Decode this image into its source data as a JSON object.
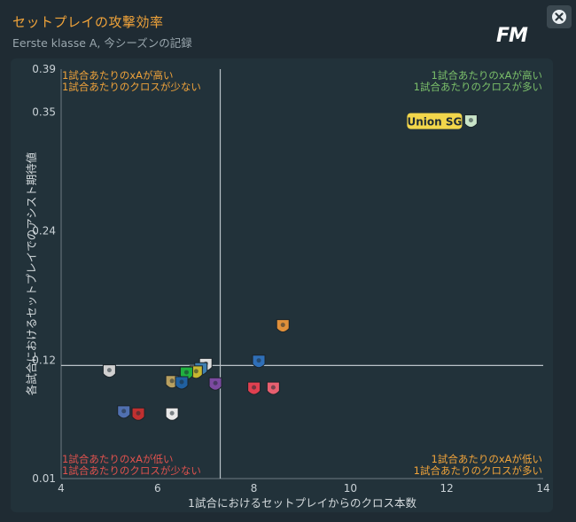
{
  "header": {
    "title": "セットプレイの攻撃効率",
    "subtitle": "Eerste klasse A, 今シーズンの記録",
    "logo": "FM"
  },
  "colors": {
    "title": "#f0a33a",
    "quad_top_left": "#f0a33a",
    "quad_top_right": "#7bbf6a",
    "quad_bottom_left": "#e0524e",
    "quad_bottom_right": "#f0a33a",
    "highlight_label_bg": "#f2d64b"
  },
  "icons": {
    "close": "close-icon",
    "logo": "fm-logo"
  },
  "chart_data": {
    "type": "scatter",
    "xlabel": "1試合におけるセットプレイからのクロス本数",
    "ylabel": "各試合におけるセットプレイでのアシスト期待値",
    "xlim": [
      4,
      14
    ],
    "ylim": [
      0.01,
      0.39
    ],
    "xticks": [
      "4",
      "6",
      "8",
      "10",
      "12",
      "14"
    ],
    "yticks": [
      "0.01",
      "0.12",
      "0.24",
      "0.35",
      "0.39"
    ],
    "xticks_values": [
      4,
      6,
      8,
      10,
      12,
      14
    ],
    "yticks_values": [
      0.01,
      0.12,
      0.24,
      0.35,
      0.39
    ],
    "reference_lines": {
      "x": 7.3,
      "y": 0.115
    },
    "quadrant_labels": {
      "top_left": [
        "1試合あたりのxAが高い",
        "1試合あたりのクロスが少ない"
      ],
      "top_right": [
        "1試合あたりのxAが高い",
        "1試合あたりのクロスが多い"
      ],
      "bottom_left": [
        "1試合あたりのxAが低い",
        "1試合あたりのクロスが少ない"
      ],
      "bottom_right": [
        "1試合あたりのxAが低い",
        "1試合あたりのクロスが多い"
      ]
    },
    "highlight_label": "Union SG",
    "points": [
      {
        "x": 12.5,
        "y": 0.341,
        "color": "#c9e4c8",
        "highlight": true
      },
      {
        "x": 8.6,
        "y": 0.151,
        "color": "#e0903a"
      },
      {
        "x": 8.1,
        "y": 0.118,
        "color": "#2f6fb8"
      },
      {
        "x": 7.0,
        "y": 0.115,
        "color": "#dedede"
      },
      {
        "x": 6.9,
        "y": 0.111,
        "color": "#3f7fb0"
      },
      {
        "x": 6.8,
        "y": 0.108,
        "color": "#c8b830"
      },
      {
        "x": 6.6,
        "y": 0.107,
        "color": "#20b040"
      },
      {
        "x": 7.2,
        "y": 0.097,
        "color": "#7c4aa0"
      },
      {
        "x": 6.3,
        "y": 0.099,
        "color": "#b8a060"
      },
      {
        "x": 6.5,
        "y": 0.098,
        "color": "#2060a0"
      },
      {
        "x": 8.0,
        "y": 0.093,
        "color": "#e04050"
      },
      {
        "x": 8.4,
        "y": 0.093,
        "color": "#e86070"
      },
      {
        "x": 5.0,
        "y": 0.109,
        "color": "#d0d0d0"
      },
      {
        "x": 5.3,
        "y": 0.071,
        "color": "#5070b0"
      },
      {
        "x": 5.6,
        "y": 0.069,
        "color": "#c03030"
      },
      {
        "x": 6.3,
        "y": 0.069,
        "color": "#e8e8e8"
      }
    ]
  }
}
